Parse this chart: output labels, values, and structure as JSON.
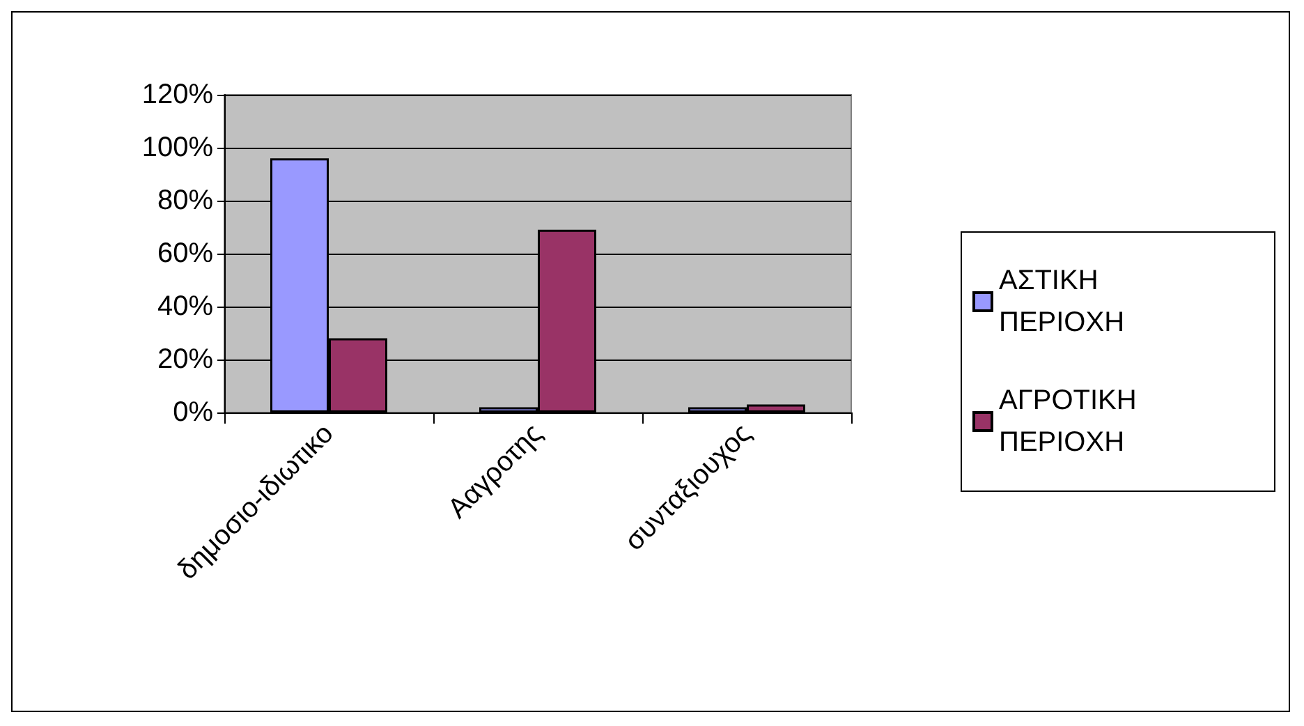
{
  "chart_data": {
    "type": "bar",
    "categories": [
      "δημοσιο-ιδιωτικο",
      "Ααγροτης",
      "συνταξιουχος"
    ],
    "series": [
      {
        "name": "ΑΣΤΙΚΗ ΠΕΡΙΟΧΗ",
        "color": "#9999ff",
        "values": [
          96,
          2,
          2
        ]
      },
      {
        "name": "ΑΓΡΟΤΙΚΗ ΠΕΡΙΟΧΗ",
        "color": "#993366",
        "values": [
          28,
          69,
          3
        ]
      }
    ],
    "ylim": [
      0,
      120
    ],
    "yticks": [
      {
        "value": 0,
        "label": "0%"
      },
      {
        "value": 20,
        "label": "20%"
      },
      {
        "value": 40,
        "label": "40%"
      },
      {
        "value": 60,
        "label": "60%"
      },
      {
        "value": 80,
        "label": "80%"
      },
      {
        "value": 100,
        "label": "100%"
      },
      {
        "value": 120,
        "label": "120%"
      }
    ],
    "grid": "y",
    "legend": "right"
  }
}
